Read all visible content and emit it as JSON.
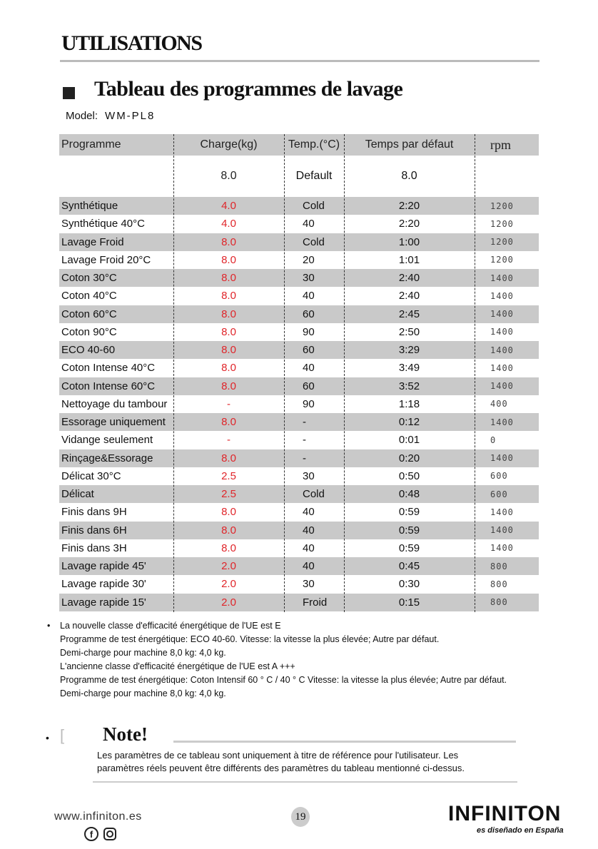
{
  "header": {
    "title": "UTILISATIONS"
  },
  "section": {
    "title": "Tableau des programmes de lavage",
    "model_label": "Model:",
    "model": "WM-PL8"
  },
  "table": {
    "columns": [
      "Programme",
      "Charge(kg)",
      "Temp.(°C)",
      "Temps par défaut",
      "rpm"
    ],
    "defaults": {
      "charge": "8.0",
      "temp": "Default",
      "time": "8.0"
    },
    "rows": [
      [
        "Synthétique",
        "4.0",
        "Cold",
        "2:20",
        "1200"
      ],
      [
        "Synthétique 40°C",
        "4.0",
        "40",
        "2:20",
        "1200"
      ],
      [
        "Lavage Froid",
        "8.0",
        "Cold",
        "1:00",
        "1200"
      ],
      [
        "Lavage Froid 20°C",
        "8.0",
        "20",
        "1:01",
        "1200"
      ],
      [
        "Coton 30°C",
        "8.0",
        "30",
        "2:40",
        "1400"
      ],
      [
        "Coton 40°C",
        "8.0",
        "40",
        "2:40",
        "1400"
      ],
      [
        "Coton 60°C",
        "8.0",
        "60",
        "2:45",
        "1400"
      ],
      [
        "Coton 90°C",
        "8.0",
        "90",
        "2:50",
        "1400"
      ],
      [
        "ECO 40-60",
        "8.0",
        "60",
        "3:29",
        "1400"
      ],
      [
        "Coton Intense 40°C",
        "8.0",
        "40",
        "3:49",
        "1400"
      ],
      [
        "Coton Intense 60°C",
        "8.0",
        "60",
        "3:52",
        "1400"
      ],
      [
        "Nettoyage du tambour",
        "-",
        "90",
        "1:18",
        "400"
      ],
      [
        "Essorage uniquement",
        "8.0",
        "-",
        "0:12",
        "1400"
      ],
      [
        "Vidange seulement",
        "-",
        "-",
        "0:01",
        "0"
      ],
      [
        "Rinçage&Essorage",
        "8.0",
        "-",
        "0:20",
        "1400"
      ],
      [
        "Délicat 30°C",
        "2.5",
        "30",
        "0:50",
        "600"
      ],
      [
        "Délicat",
        "2.5",
        "Cold",
        "0:48",
        "600"
      ],
      [
        "Finis dans 9H",
        "8.0",
        "40",
        "0:59",
        "1400"
      ],
      [
        "Finis dans 6H",
        "8.0",
        "40",
        "0:59",
        "1400"
      ],
      [
        "Finis dans 3H",
        "8.0",
        "40",
        "0:59",
        "1400"
      ],
      [
        "Lavage rapide 45'",
        "2.0",
        "40",
        "0:45",
        "800"
      ],
      [
        "Lavage rapide 30'",
        "2.0",
        "30",
        "0:30",
        "800"
      ],
      [
        "Lavage rapide 15'",
        "2.0",
        "Froid",
        "0:15",
        "800"
      ]
    ]
  },
  "notes": [
    "La nouvelle classe d'efficacité énergétique de l'UE est E",
    "Programme de test énergétique: ECO 40-60. Vitesse: la vitesse la plus élevée; Autre par défaut.",
    "Demi-charge pour machine 8,0 kg: 4,0 kg.",
    "L'ancienne classe d'efficacité énergétique de l'UE est A +++",
    "Programme de test énergétique: Coton Intensif 60 ° C / 40 ° C Vitesse: la vitesse la plus élevée; Autre par défaut.",
    "Demi-charge pour machine 8,0 kg: 4,0 kg."
  ],
  "note_box": {
    "title": "Note!",
    "text": "Les paramètres de ce tableau sont uniquement à titre de référence pour l'utilisateur. Les paramètres réels peuvent être différents des paramètres du tableau mentionné ci-dessus."
  },
  "footer": {
    "website": "www.infiniton.es",
    "page": "19",
    "brand": "INFINITON",
    "tagline": "es diseñado en España"
  }
}
